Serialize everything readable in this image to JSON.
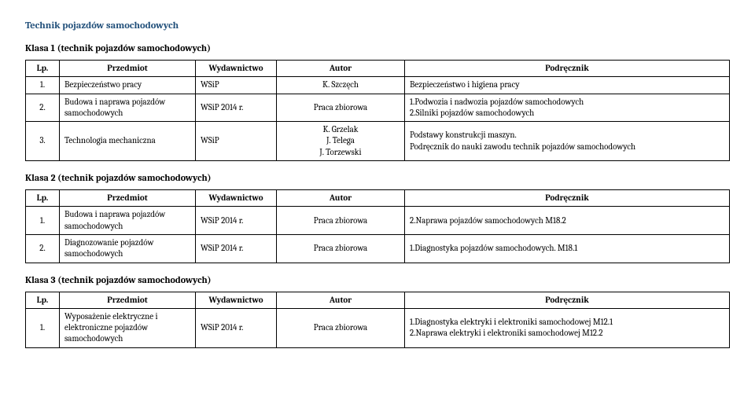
{
  "page_title": "Technik pojazdów samochodowych",
  "headers": {
    "lp": "Lp.",
    "subject": "Przedmiot",
    "publisher": "Wydawnictwo",
    "author": "Autor",
    "textbook": "Podręcznik"
  },
  "sections": [
    {
      "title": "Klasa 1 (technik pojazdów samochodowych)",
      "rows": [
        {
          "lp": "1.",
          "subject": "Bezpieczeństwo pracy",
          "publisher": "WSiP",
          "author": "K. Szczęch",
          "textbook": "Bezpieczeństwo i higiena pracy"
        },
        {
          "lp": "2.",
          "subject": "Budowa i naprawa pojazdów samochodowych",
          "publisher": "WSiP 2014 r.",
          "author": "Praca zbiorowa",
          "textbook": "1.Podwozia i nadwozia pojazdów samochodowych\n2.Silniki pojazdów samochodowych"
        },
        {
          "lp": "3.",
          "subject": "Technologia mechaniczna",
          "publisher": "WSiP",
          "author": "K. Grzelak\nJ. Telega\nJ. Torzewski",
          "textbook": "Podstawy konstrukcji maszyn.\nPodręcznik do nauki zawodu technik pojazdów samochodowych"
        }
      ]
    },
    {
      "title": "Klasa 2 (technik pojazdów samochodowych)",
      "rows": [
        {
          "lp": "1.",
          "subject": "Budowa i naprawa pojazdów samochodowych",
          "publisher": "WSiP 2014 r.",
          "author": "Praca zbiorowa",
          "textbook": "2.Naprawa pojazdów samochodowych M18.2"
        },
        {
          "lp": "2.",
          "subject": "Diagnozowanie pojazdów samochodowych",
          "publisher": "WSiP 2014 r.",
          "author": "Praca zbiorowa",
          "textbook": "1.Diagnostyka pojazdów samochodowych. M18.1"
        }
      ]
    },
    {
      "title": "Klasa 3 (technik pojazdów samochodowych)",
      "rows": [
        {
          "lp": "1.",
          "subject": "Wyposażenie elektryczne i elektroniczne pojazdów samochodowych",
          "publisher": "WSiP 2014 r.",
          "author": "Praca zbiorowa",
          "textbook": "1.Diagnostyka elektryki i elektroniki samochodowej M12.1\n2.Naprawa elektryki i elektroniki samochodowej M12.2"
        }
      ]
    }
  ]
}
